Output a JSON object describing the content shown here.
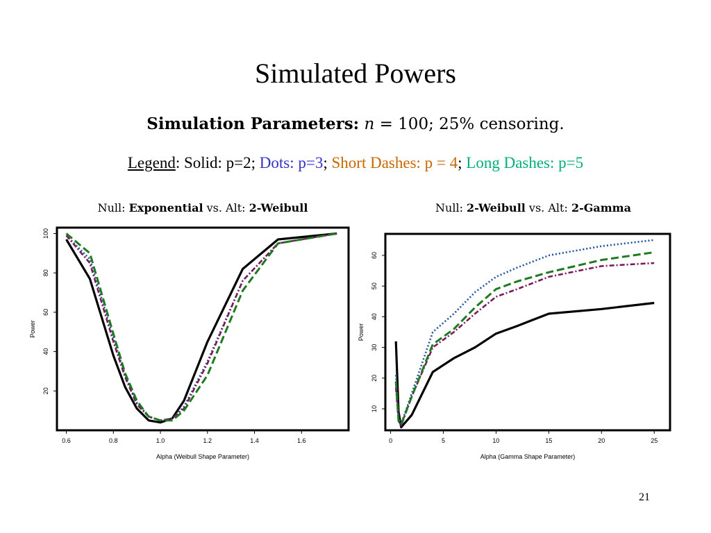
{
  "slide": {
    "title": "Simulated Powers",
    "page_number": "21"
  },
  "sim_params": {
    "label": "Simulation Parameters:",
    "n_var": "n",
    "n_rest": " = 100; 25% censoring."
  },
  "legend": {
    "word": "Legend",
    "colon": ": ",
    "solid": "Solid: p=2;",
    "dots": "Dots: p=3",
    "sep1": ";",
    "short": "Short Dashes: p = 4",
    "sep2": ";",
    "long": "Long Dashes: p=5"
  },
  "colors": {
    "solid": "#000000",
    "dots": "#1f4fa0",
    "short_dashes": "#7a1a5a",
    "long_dashes": "#1e7a1e",
    "legend_dots_text": "#3333cc",
    "legend_short_text": "#cc6600",
    "legend_long_text": "#00b07a"
  },
  "chart_data": [
    {
      "type": "line",
      "title_parts": [
        {
          "text": "Null: ",
          "bold": false
        },
        {
          "text": "Exponential",
          "bold": true
        },
        {
          "text": " vs. Alt: ",
          "bold": false
        },
        {
          "text": "2-Weibull",
          "bold": true
        }
      ],
      "xlabel": "Alpha (Weibull Shape Parameter)",
      "ylabel": "Power",
      "xlim": [
        0.56,
        1.8
      ],
      "ylim": [
        0,
        103
      ],
      "xticks": [
        0.6,
        0.8,
        1.0,
        1.2,
        1.4,
        1.6
      ],
      "xtick_labels": [
        "0.6",
        "0.8",
        "1.0",
        "1.2",
        "1.4",
        "1.6"
      ],
      "yticks": [
        20,
        40,
        60,
        80,
        100
      ],
      "ytick_labels": [
        "20",
        "40",
        "60",
        "80",
        "100"
      ],
      "series": [
        {
          "style": "solid",
          "x": [
            0.6,
            0.7,
            0.8,
            0.85,
            0.9,
            0.95,
            1.0,
            1.05,
            1.1,
            1.2,
            1.35,
            1.5,
            1.75
          ],
          "y": [
            97,
            77,
            38,
            22,
            11,
            5,
            4,
            6,
            15,
            45,
            82,
            97,
            100
          ]
        },
        {
          "style": "dots",
          "x": [
            0.6,
            0.7,
            0.8,
            0.85,
            0.9,
            0.95,
            1.0,
            1.05,
            1.1,
            1.2,
            1.35,
            1.5,
            1.75
          ],
          "y": [
            99,
            87,
            47,
            28,
            14,
            7,
            5,
            6,
            12,
            35,
            76,
            95,
            100
          ]
        },
        {
          "style": "short_dashes",
          "x": [
            0.6,
            0.7,
            0.8,
            0.85,
            0.9,
            0.95,
            1.0,
            1.05,
            1.1,
            1.2,
            1.35,
            1.5,
            1.75
          ],
          "y": [
            99,
            85,
            45,
            27,
            13,
            7,
            5,
            6,
            11,
            34,
            76,
            95,
            100
          ]
        },
        {
          "style": "long_dashes",
          "x": [
            0.6,
            0.7,
            0.8,
            0.85,
            0.9,
            0.95,
            1.0,
            1.05,
            1.1,
            1.2,
            1.35,
            1.5,
            1.75
          ],
          "y": [
            100,
            90,
            49,
            29,
            15,
            7,
            5,
            5,
            10,
            28,
            71,
            95,
            100
          ]
        }
      ]
    },
    {
      "type": "line",
      "title_parts": [
        {
          "text": "Null: ",
          "bold": false
        },
        {
          "text": "2-Weibull",
          "bold": true
        },
        {
          "text": " vs. Alt: ",
          "bold": false
        },
        {
          "text": "2-Gamma",
          "bold": true
        }
      ],
      "xlabel": "Alpha (Gamma Shape Parameter)",
      "ylabel": "Power",
      "xlim": [
        -0.5,
        26.5
      ],
      "ylim": [
        3,
        67
      ],
      "xticks": [
        0,
        5,
        10,
        15,
        20,
        25
      ],
      "xtick_labels": [
        "0",
        "5",
        "10",
        "15",
        "20",
        "25"
      ],
      "yticks": [
        10,
        20,
        30,
        40,
        50,
        60
      ],
      "ytick_labels": [
        "10",
        "20",
        "30",
        "40",
        "50",
        "60"
      ],
      "series": [
        {
          "style": "solid",
          "x": [
            0.5,
            0.75,
            1,
            2,
            4,
            6,
            8,
            10,
            12,
            15,
            20,
            25
          ],
          "y": [
            32,
            9,
            4,
            8,
            22,
            26.5,
            30,
            34.5,
            37,
            41,
            42.5,
            44.5
          ]
        },
        {
          "style": "dots",
          "x": [
            0.5,
            0.75,
            1,
            2,
            4,
            6,
            8,
            10,
            12,
            15,
            20,
            25
          ],
          "y": [
            21,
            7,
            5,
            15,
            35,
            41,
            48,
            53,
            56,
            60,
            63,
            65
          ]
        },
        {
          "style": "short_dashes",
          "x": [
            0.5,
            0.75,
            1,
            2,
            4,
            6,
            8,
            10,
            12,
            15,
            20,
            25
          ],
          "y": [
            17,
            6,
            4.5,
            14,
            30,
            35,
            41,
            46.5,
            49,
            53,
            56.5,
            57.5
          ]
        },
        {
          "style": "long_dashes",
          "x": [
            0.5,
            0.75,
            1,
            2,
            4,
            6,
            8,
            10,
            12,
            15,
            20,
            25
          ],
          "y": [
            19,
            6,
            5,
            14,
            31,
            36,
            43,
            49,
            51.5,
            54.5,
            58.5,
            61
          ]
        }
      ]
    }
  ]
}
